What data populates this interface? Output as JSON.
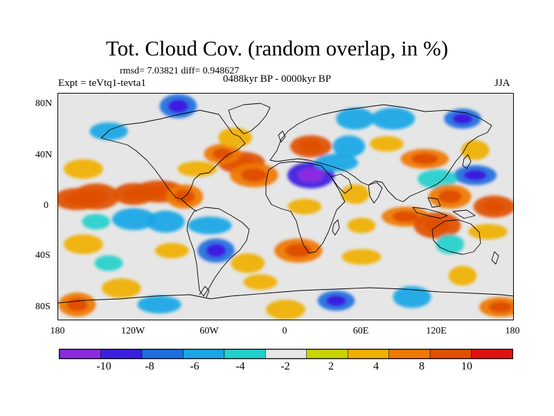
{
  "title": "Tot. Cloud Cov. (random overlap, in %)",
  "stats": "rmsd= 7.03821 diff= 0.948627",
  "expt": "Expt = teVtq1-tevta1",
  "period": "0488kyr BP - 0000kyr BP",
  "season": "JJA",
  "map": {
    "projection": "cylindrical-equidistant",
    "lon_range": [
      -180,
      180
    ],
    "lat_range": [
      -90,
      90
    ],
    "y_ticks": [
      {
        "lat": 80,
        "label": "80N"
      },
      {
        "lat": 40,
        "label": "40N"
      },
      {
        "lat": 0,
        "label": "0"
      },
      {
        "lat": -40,
        "label": "40S"
      },
      {
        "lat": -80,
        "label": "80S"
      }
    ],
    "x_ticks": [
      {
        "lon": -180,
        "label": "180"
      },
      {
        "lon": -120,
        "label": "120W"
      },
      {
        "lon": -60,
        "label": "60W"
      },
      {
        "lon": 0,
        "label": "0"
      },
      {
        "lon": 60,
        "label": "60E"
      },
      {
        "lon": 120,
        "label": "120E"
      },
      {
        "lon": 180,
        "label": "180"
      }
    ],
    "background_color": "#e6e6e6",
    "coastline_color": "#000000"
  },
  "colorbar": {
    "colors": [
      "#8a2be2",
      "#3a1fe0",
      "#1e6fe0",
      "#1aa6e6",
      "#22d0cc",
      "#e6e6e6",
      "#c8d400",
      "#f0b000",
      "#f07800",
      "#e05000",
      "#e01010"
    ],
    "tick_labels": [
      "-10",
      "-8",
      "-6",
      "-4",
      "-2",
      "2",
      "4",
      "8",
      "10"
    ]
  },
  "chart_data": {
    "type": "heatmap",
    "title": "Tot. Cloud Cov. (random overlap, in %)",
    "levels": [
      -10,
      -8,
      -6,
      -4,
      -2,
      2,
      4,
      8,
      10
    ],
    "anomaly_regions": [
      {
        "lon": -120,
        "lat": 10,
        "value": 10
      },
      {
        "lon": -150,
        "lat": 8,
        "value": 10
      },
      {
        "lon": -100,
        "lat": 12,
        "value": 10
      },
      {
        "lon": -80,
        "lat": 8,
        "value": 8
      },
      {
        "lon": -165,
        "lat": 6,
        "value": 10
      },
      {
        "lon": -120,
        "lat": -10,
        "value": -6
      },
      {
        "lon": -150,
        "lat": -12,
        "value": -4
      },
      {
        "lon": -95,
        "lat": -12,
        "value": -6
      },
      {
        "lon": -60,
        "lat": -15,
        "value": -6
      },
      {
        "lon": -55,
        "lat": -35,
        "value": -8
      },
      {
        "lon": -35,
        "lat": 35,
        "value": 10
      },
      {
        "lon": -25,
        "lat": 25,
        "value": 8
      },
      {
        "lon": -50,
        "lat": 42,
        "value": 8
      },
      {
        "lon": -40,
        "lat": 55,
        "value": 4
      },
      {
        "lon": -70,
        "lat": 30,
        "value": 4
      },
      {
        "lon": -85,
        "lat": 80,
        "value": -8
      },
      {
        "lon": -140,
        "lat": 60,
        "value": -6
      },
      {
        "lon": -160,
        "lat": 30,
        "value": 4
      },
      {
        "lon": 20,
        "lat": 48,
        "value": 10
      },
      {
        "lon": 20,
        "lat": 25,
        "value": -10
      },
      {
        "lon": 40,
        "lat": 35,
        "value": -6
      },
      {
        "lon": 50,
        "lat": 48,
        "value": -6
      },
      {
        "lon": 80,
        "lat": 50,
        "value": 4
      },
      {
        "lon": 85,
        "lat": 70,
        "value": -6
      },
      {
        "lon": 140,
        "lat": 70,
        "value": -8
      },
      {
        "lon": 55,
        "lat": 70,
        "value": -6
      },
      {
        "lon": 110,
        "lat": 38,
        "value": 8
      },
      {
        "lon": 150,
        "lat": 45,
        "value": 4
      },
      {
        "lon": 150,
        "lat": 25,
        "value": -8
      },
      {
        "lon": 120,
        "lat": 22,
        "value": -4
      },
      {
        "lon": 165,
        "lat": 0,
        "value": 10
      },
      {
        "lon": 130,
        "lat": 8,
        "value": 8
      },
      {
        "lon": 95,
        "lat": -8,
        "value": 8
      },
      {
        "lon": 55,
        "lat": 10,
        "value": 4
      },
      {
        "lon": 15,
        "lat": 0,
        "value": 4
      },
      {
        "lon": 10,
        "lat": -35,
        "value": 8
      },
      {
        "lon": 60,
        "lat": -15,
        "value": 4
      },
      {
        "lon": 120,
        "lat": -15,
        "value": 10
      },
      {
        "lon": 160,
        "lat": -20,
        "value": 4
      },
      {
        "lon": 130,
        "lat": -30,
        "value": -4
      },
      {
        "lon": -90,
        "lat": -35,
        "value": 4
      },
      {
        "lon": -160,
        "lat": -30,
        "value": 4
      },
      {
        "lon": -140,
        "lat": -45,
        "value": -4
      },
      {
        "lon": -30,
        "lat": -45,
        "value": 4
      },
      {
        "lon": 60,
        "lat": -40,
        "value": 4
      },
      {
        "lon": 140,
        "lat": -55,
        "value": 4
      },
      {
        "lon": -20,
        "lat": -60,
        "value": 4
      },
      {
        "lon": -130,
        "lat": -65,
        "value": 4
      },
      {
        "lon": 40,
        "lat": -75,
        "value": -8
      },
      {
        "lon": 100,
        "lat": -72,
        "value": -6
      },
      {
        "lon": -100,
        "lat": -78,
        "value": -6
      },
      {
        "lon": -165,
        "lat": -78,
        "value": 8
      },
      {
        "lon": 170,
        "lat": -80,
        "value": 8
      },
      {
        "lon": 0,
        "lat": -82,
        "value": 4
      }
    ]
  }
}
